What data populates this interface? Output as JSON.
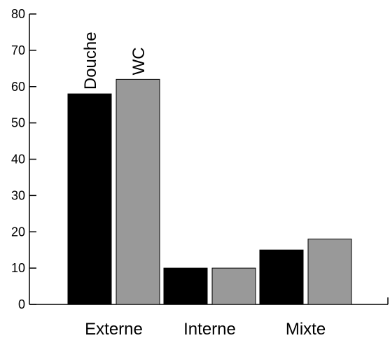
{
  "chart_data": {
    "type": "bar",
    "categories": [
      "Externe",
      "Interne",
      "Mixte"
    ],
    "series": [
      {
        "name": "Douche",
        "color": "#000000",
        "values": [
          58,
          10,
          15
        ]
      },
      {
        "name": "WC",
        "color": "#999999",
        "values": [
          62,
          10,
          18
        ]
      }
    ],
    "ylim": [
      0,
      80
    ],
    "yticks": [
      0,
      10,
      20,
      30,
      40,
      50,
      60,
      70,
      80
    ],
    "grid": false
  }
}
